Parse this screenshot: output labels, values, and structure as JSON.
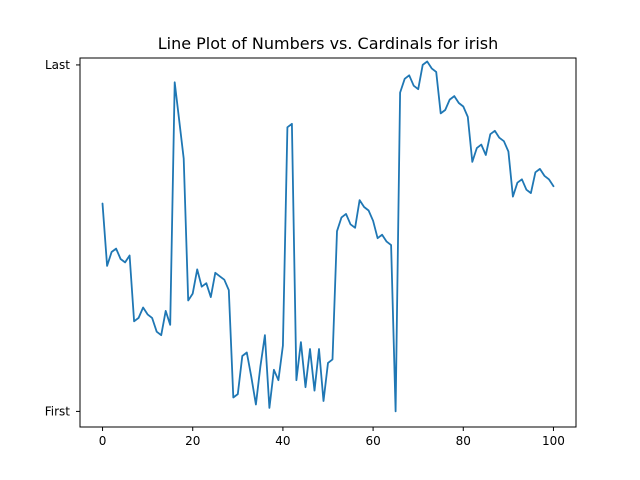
{
  "chart_data": {
    "type": "line",
    "title": "Line Plot of Numbers vs. Cardinals for irish",
    "xlabel": "",
    "ylabel": "",
    "xlim": [
      -5,
      105
    ],
    "ylim": [
      -0.045,
      1.02
    ],
    "x_ticks": [
      0,
      20,
      40,
      60,
      80,
      100
    ],
    "y_tick_labels": [
      {
        "value": 0,
        "label": "First"
      },
      {
        "value": 1,
        "label": "Last"
      }
    ],
    "grid": false,
    "series_color": "#1f77b4",
    "series": [
      {
        "x": [
          0,
          1,
          2,
          3,
          4,
          5,
          6,
          7,
          8,
          9,
          10,
          11,
          12,
          13,
          14,
          15,
          16,
          17,
          18,
          19,
          20,
          21,
          22,
          23,
          24,
          25,
          26,
          27,
          28,
          29,
          30,
          31,
          32,
          33,
          34,
          35,
          36,
          37,
          38,
          39,
          40,
          41,
          42,
          43,
          44,
          45,
          46,
          47,
          48,
          49,
          50,
          51,
          52,
          53,
          54,
          55,
          56,
          57,
          58,
          59,
          60,
          61,
          62,
          63,
          64,
          65,
          66,
          67,
          68,
          69,
          70,
          71,
          72,
          73,
          74,
          75,
          76,
          77,
          78,
          79,
          80,
          81,
          82,
          83,
          84,
          85,
          86,
          87,
          88,
          89,
          90,
          91,
          92,
          93,
          94,
          95,
          96,
          97,
          98,
          99,
          100
        ],
        "values": [
          0.6,
          0.42,
          0.46,
          0.47,
          0.44,
          0.43,
          0.45,
          0.26,
          0.27,
          0.3,
          0.28,
          0.27,
          0.23,
          0.22,
          0.29,
          0.25,
          0.95,
          0.84,
          0.73,
          0.32,
          0.34,
          0.41,
          0.36,
          0.37,
          0.33,
          0.4,
          0.39,
          0.38,
          0.35,
          0.04,
          0.05,
          0.16,
          0.17,
          0.1,
          0.02,
          0.13,
          0.22,
          0.01,
          0.12,
          0.09,
          0.19,
          0.82,
          0.83,
          0.09,
          0.2,
          0.07,
          0.18,
          0.06,
          0.18,
          0.03,
          0.14,
          0.15,
          0.52,
          0.56,
          0.57,
          0.54,
          0.53,
          0.61,
          0.59,
          0.58,
          0.55,
          0.5,
          0.51,
          0.49,
          0.48,
          0.0,
          0.92,
          0.96,
          0.97,
          0.94,
          0.93,
          1.0,
          1.01,
          0.99,
          0.98,
          0.86,
          0.87,
          0.9,
          0.91,
          0.89,
          0.88,
          0.85,
          0.72,
          0.76,
          0.77,
          0.74,
          0.8,
          0.81,
          0.79,
          0.78,
          0.75,
          0.62,
          0.66,
          0.67,
          0.64,
          0.63,
          0.69,
          0.7,
          0.68,
          0.67,
          0.65
        ]
      }
    ]
  }
}
